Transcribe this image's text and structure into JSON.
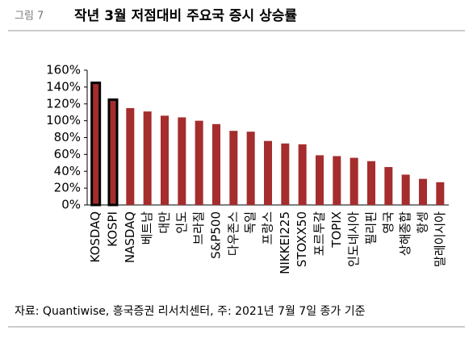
{
  "chart_data": {
    "type": "bar",
    "label": "그림 7",
    "title": "작년 3월 저점대비 주요국 증시 상승률",
    "source": "자료: Quantiwise, 흥국증권 리서치센터, 주: 2021년 7월 7일 종가 기준",
    "categories": [
      "KOSDAQ",
      "KOSPI",
      "NASDAQ",
      "베트남",
      "대만",
      "인도",
      "브라질",
      "S&P500",
      "다우존스",
      "독일",
      "프랑스",
      "NIKKEI225",
      "STOXX50",
      "포르투갈",
      "TOPIX",
      "인도네시아",
      "필리핀",
      "영국",
      "상해종합",
      "항셍",
      "말레이시아"
    ],
    "values": [
      145,
      125,
      115,
      111,
      106,
      104,
      100,
      96,
      88,
      87,
      76,
      73,
      72,
      59,
      58,
      56,
      52,
      45,
      36,
      31,
      27
    ],
    "color": "#a52d2d",
    "edge_colors": [
      "#000000",
      "#000000",
      null,
      null,
      null,
      null,
      null,
      null,
      null,
      null,
      null,
      null,
      null,
      null,
      null,
      null,
      null,
      null,
      null,
      null,
      null
    ],
    "ylim": [
      0,
      160
    ],
    "yticks": [
      {
        "value": 0,
        "label": "0%"
      },
      {
        "value": 20,
        "label": "20%"
      },
      {
        "value": 40,
        "label": "40%"
      },
      {
        "value": 60,
        "label": "60%"
      },
      {
        "value": 80,
        "label": "80%"
      },
      {
        "value": 100,
        "label": "100%"
      },
      {
        "value": 120,
        "label": "120%"
      },
      {
        "value": 140,
        "label": "140%"
      },
      {
        "value": 160,
        "label": "160%"
      }
    ],
    "grid": false
  }
}
